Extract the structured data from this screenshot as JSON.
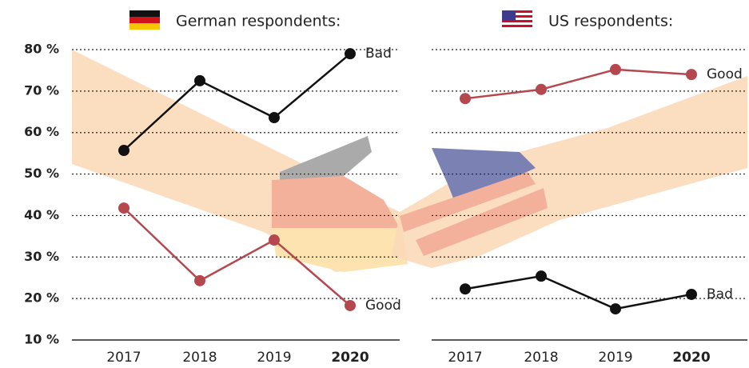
{
  "chart_data": [
    {
      "type": "line",
      "title": "German respondents:",
      "categories": [
        "2017",
        "2018",
        "2019",
        "2020"
      ],
      "series": [
        {
          "name": "Bad",
          "color": "#111111",
          "values": [
            55.7,
            72.5,
            63.6,
            79.0
          ]
        },
        {
          "name": "Good",
          "color": "#b5474f",
          "values": [
            41.8,
            24.3,
            34.1,
            18.3
          ]
        }
      ],
      "ylim": [
        10,
        80
      ],
      "yticks": [
        {
          "value": 10,
          "label": "10 %"
        },
        {
          "value": 20,
          "label": "20 %"
        },
        {
          "value": 30,
          "label": "30 %"
        },
        {
          "value": 40,
          "label": "40 %"
        },
        {
          "value": 50,
          "label": "50 %"
        },
        {
          "value": 60,
          "label": "60 %"
        },
        {
          "value": 70,
          "label": "70 %"
        },
        {
          "value": 80,
          "label": "80 %"
        }
      ],
      "grid": true
    },
    {
      "type": "line",
      "title": "US respondents:",
      "categories": [
        "2017",
        "2018",
        "2019",
        "2020"
      ],
      "series": [
        {
          "name": "Good",
          "color": "#b5474f",
          "values": [
            68.2,
            70.4,
            75.2,
            74.0
          ]
        },
        {
          "name": "Bad",
          "color": "#111111",
          "values": [
            22.3,
            25.4,
            17.5,
            21.0
          ]
        }
      ],
      "ylim": [
        10,
        80
      ],
      "yticks": [
        10,
        20,
        30,
        40,
        50,
        60,
        70,
        80
      ],
      "grid": true
    }
  ]
}
